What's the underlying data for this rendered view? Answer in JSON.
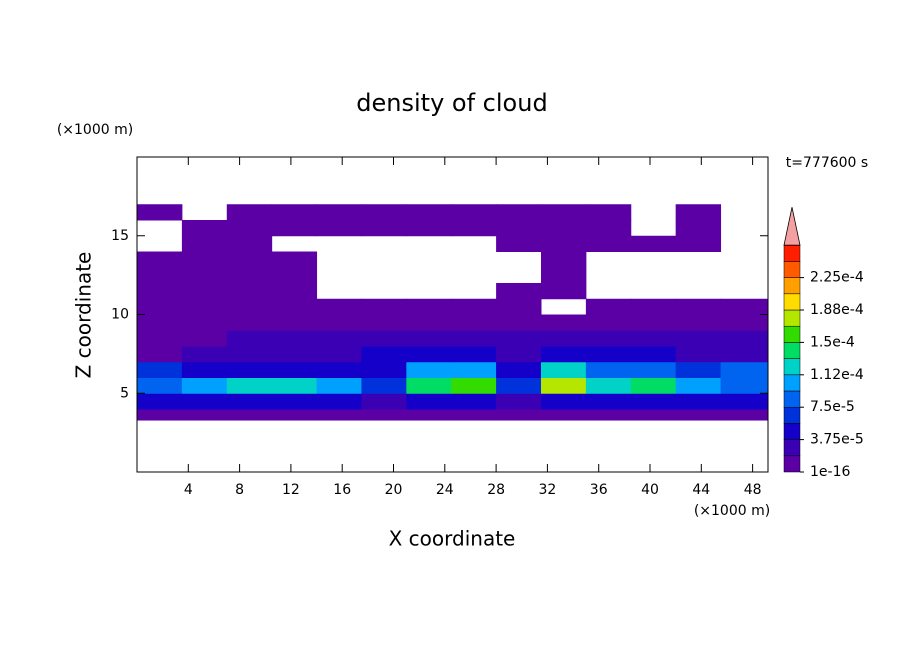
{
  "chart_data": {
    "type": "contour",
    "title": "density of cloud",
    "x_label": "X coordinate",
    "y_label": "Z coordinate",
    "x_unit": "(×1000 m)",
    "y_unit": "(×1000 m)",
    "annotation": "t=777600 s",
    "xlim": [
      0,
      49.2
    ],
    "ylim": [
      0,
      20
    ],
    "xticks": [
      4,
      8,
      12,
      16,
      20,
      24,
      28,
      32,
      36,
      40,
      44,
      48
    ],
    "yticks": [
      5,
      10,
      15
    ],
    "x_edges": [
      0,
      3.5,
      7,
      10.5,
      14,
      17.5,
      21,
      24.5,
      28,
      31.5,
      35,
      38.5,
      42,
      45.5,
      49.2
    ],
    "z_edges": [
      3.3,
      4,
      5,
      6,
      7,
      8,
      9,
      10,
      11,
      12,
      13,
      14,
      15,
      16,
      17
    ],
    "values": [
      [
        1e-05,
        1e-05,
        1e-05,
        1e-05,
        1e-05,
        1e-05,
        1e-05,
        1e-05,
        1e-05,
        1e-05,
        1e-05,
        1e-05,
        1e-05,
        1e-05
      ],
      [
        4e-05,
        5e-05,
        5e-05,
        5e-05,
        5e-05,
        2e-05,
        4e-05,
        5e-05,
        2e-05,
        5e-05,
        5e-05,
        5e-05,
        4e-05,
        4e-05
      ],
      [
        8e-05,
        0.0001,
        0.00013,
        0.00013,
        0.00011,
        6e-05,
        0.00014,
        0.00016,
        6e-05,
        0.00017,
        0.00013,
        0.00014,
        0.0001,
        8e-05
      ],
      [
        6e-05,
        5e-05,
        4e-05,
        4e-05,
        4e-05,
        5e-05,
        0.00011,
        0.0001,
        5e-05,
        0.00012,
        8e-05,
        9e-05,
        7e-05,
        8e-05
      ],
      [
        1.5e-05,
        2e-05,
        2e-05,
        3e-05,
        3e-05,
        4e-05,
        4e-05,
        4e-05,
        3e-05,
        4e-05,
        4e-05,
        4e-05,
        3e-05,
        3e-05
      ],
      [
        1e-05,
        1.5e-05,
        2e-05,
        2e-05,
        2.5e-05,
        2.5e-05,
        2.5e-05,
        2e-05,
        2e-05,
        2.5e-05,
        2.5e-05,
        2e-05,
        2e-05,
        2e-05
      ],
      [
        1e-05,
        1e-05,
        1e-05,
        1.5e-05,
        1.5e-05,
        1e-05,
        1e-05,
        1e-05,
        1e-05,
        1.5e-05,
        1.5e-05,
        1.5e-05,
        1.5e-05,
        1.5e-05
      ],
      [
        1e-05,
        1e-05,
        1e-05,
        1e-05,
        1e-05,
        1e-05,
        1e-05,
        1e-05,
        1e-05,
        null,
        1e-05,
        1e-05,
        1e-05,
        1e-05
      ],
      [
        1e-05,
        1e-05,
        1e-05,
        1e-05,
        null,
        null,
        null,
        null,
        1e-05,
        1e-05,
        null,
        null,
        null,
        null
      ],
      [
        1e-05,
        1e-05,
        1e-05,
        1e-05,
        null,
        null,
        null,
        null,
        null,
        1e-05,
        null,
        null,
        null,
        null
      ],
      [
        1e-05,
        1e-05,
        1e-05,
        1e-05,
        null,
        null,
        null,
        null,
        null,
        1e-05,
        null,
        null,
        null,
        null
      ],
      [
        null,
        1e-05,
        1e-05,
        null,
        null,
        null,
        null,
        null,
        1e-05,
        1e-05,
        1e-05,
        1e-05,
        1e-05,
        null
      ],
      [
        null,
        1e-05,
        1e-05,
        1e-05,
        1e-05,
        1e-05,
        1e-05,
        1e-05,
        1e-05,
        1e-05,
        1e-05,
        null,
        1e-05,
        null
      ],
      [
        1e-05,
        null,
        1e-05,
        1e-05,
        1e-05,
        1e-05,
        1e-05,
        1e-05,
        1e-05,
        1e-05,
        1e-05,
        null,
        1e-05,
        null
      ]
    ],
    "levels": [
      1e-16,
      1.875e-05,
      3.75e-05,
      5.625e-05,
      7.5e-05,
      9.375e-05,
      0.0001125,
      0.00013125,
      0.00015,
      0.00016875,
      0.0001875,
      0.00020625,
      0.000225,
      0.00024375,
      0.0002625
    ],
    "colors": [
      "#5a00a5",
      "#3c00b4",
      "#1400c8",
      "#0032dc",
      "#0064f0",
      "#00a0ff",
      "#00d2c8",
      "#00dc64",
      "#32dc00",
      "#b4e600",
      "#ffdc00",
      "#ffa000",
      "#ff5a00",
      "#ff1e00"
    ],
    "over_color": "#f5a0a0",
    "colorbar_ticks": [
      1e-16,
      {
        "value": 3.75e-05,
        "label": "3.75e-5"
      },
      {
        "value": 7.5e-05,
        "label": "7.5e-5"
      },
      {
        "value": 0.0001125,
        "label": "1.12e-4"
      },
      {
        "value": 0.00015,
        "label": "1.5e-4"
      },
      {
        "value": 0.0001875,
        "label": "1.88e-4"
      },
      {
        "value": 0.000225,
        "label": "2.25e-4"
      }
    ]
  }
}
